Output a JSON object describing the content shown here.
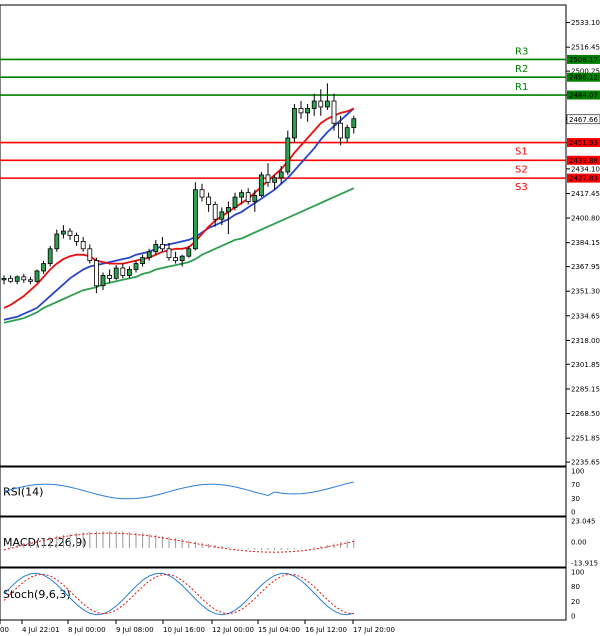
{
  "chart_data": {
    "type": "candlestick",
    "price_axis": {
      "ticks": [
        "2533.10",
        "2516.45",
        "2500.25",
        "2484.07",
        "2467.66",
        "2451.93",
        "2434.10",
        "2417.45",
        "2400.80",
        "2384.15",
        "2367.95",
        "2351.30",
        "2334.65",
        "2318.00",
        "2301.85",
        "2285.15",
        "2268.50",
        "2251.85",
        "2235.65"
      ],
      "ylim": [
        2233,
        2545
      ]
    },
    "time_axis": {
      "ticks": [
        "00",
        "4 Jul 22:01",
        "8 Jul 00:00",
        "9 Jul 08:00",
        "10 Jul 16:00",
        "12 Jul 00:00",
        "15 Jul 04:00",
        "16 Jul 12:00",
        "17 Jul 20:00"
      ]
    },
    "levels": [
      {
        "name": "R3",
        "value": 2508.17,
        "label": "2508.17",
        "color": "#008000"
      },
      {
        "name": "R2",
        "value": 2496.12,
        "label": "2496.12",
        "color": "#008000"
      },
      {
        "name": "R1",
        "value": 2484.07,
        "label": "2484.07",
        "color": "#008000"
      },
      {
        "name": "S1",
        "value": 2451.93,
        "label": "2451.93",
        "color": "#ff0000"
      },
      {
        "name": "S2",
        "value": 2439.88,
        "label": "2439.88",
        "color": "#ff0000"
      },
      {
        "name": "S3",
        "value": 2427.83,
        "label": "2427.83",
        "color": "#ff0000"
      }
    ],
    "current_price": {
      "value": 2467.66,
      "label": "2467.66"
    },
    "candles": [
      [
        2359,
        2362,
        2356,
        2360
      ],
      [
        2360,
        2362,
        2357,
        2358
      ],
      [
        2358,
        2362,
        2356,
        2361
      ],
      [
        2361,
        2363,
        2357,
        2359
      ],
      [
        2359,
        2361,
        2356,
        2358
      ],
      [
        2358,
        2366,
        2357,
        2365
      ],
      [
        2365,
        2372,
        2363,
        2370
      ],
      [
        2370,
        2382,
        2368,
        2380
      ],
      [
        2380,
        2393,
        2378,
        2390
      ],
      [
        2390,
        2396,
        2387,
        2392
      ],
      [
        2392,
        2394,
        2386,
        2389
      ],
      [
        2389,
        2391,
        2382,
        2385
      ],
      [
        2385,
        2388,
        2378,
        2380
      ],
      [
        2380,
        2383,
        2370,
        2372
      ],
      [
        2372,
        2374,
        2350,
        2355
      ],
      [
        2355,
        2364,
        2352,
        2362
      ],
      [
        2362,
        2366,
        2357,
        2360
      ],
      [
        2360,
        2369,
        2359,
        2367
      ],
      [
        2367,
        2370,
        2360,
        2362
      ],
      [
        2362,
        2368,
        2360,
        2366
      ],
      [
        2366,
        2372,
        2364,
        2370
      ],
      [
        2370,
        2376,
        2368,
        2374
      ],
      [
        2374,
        2380,
        2372,
        2378
      ],
      [
        2378,
        2386,
        2376,
        2383
      ],
      [
        2383,
        2388,
        2378,
        2380
      ],
      [
        2380,
        2384,
        2372,
        2374
      ],
      [
        2374,
        2378,
        2370,
        2372
      ],
      [
        2372,
        2376,
        2368,
        2375
      ],
      [
        2375,
        2382,
        2374,
        2380
      ],
      [
        2380,
        2425,
        2379,
        2420
      ],
      [
        2420,
        2424,
        2412,
        2415
      ],
      [
        2415,
        2418,
        2405,
        2410
      ],
      [
        2410,
        2412,
        2395,
        2400
      ],
      [
        2400,
        2408,
        2396,
        2405
      ],
      [
        2405,
        2412,
        2390,
        2408
      ],
      [
        2408,
        2418,
        2406,
        2415
      ],
      [
        2415,
        2420,
        2410,
        2418
      ],
      [
        2418,
        2421,
        2410,
        2412
      ],
      [
        2412,
        2420,
        2405,
        2416
      ],
      [
        2416,
        2432,
        2415,
        2430
      ],
      [
        2430,
        2438,
        2422,
        2425
      ],
      [
        2425,
        2430,
        2420,
        2428
      ],
      [
        2428,
        2436,
        2424,
        2432
      ],
      [
        2432,
        2460,
        2430,
        2455
      ],
      [
        2455,
        2478,
        2452,
        2475
      ],
      [
        2475,
        2480,
        2468,
        2472
      ],
      [
        2472,
        2478,
        2466,
        2475
      ],
      [
        2475,
        2485,
        2470,
        2480
      ],
      [
        2480,
        2488,
        2470,
        2476
      ],
      [
        2476,
        2492,
        2474,
        2480
      ],
      [
        2480,
        2485,
        2460,
        2465
      ],
      [
        2465,
        2470,
        2450,
        2455
      ],
      [
        2455,
        2464,
        2452,
        2462
      ],
      [
        2462,
        2470,
        2458,
        2468
      ]
    ],
    "ma_slow": [
      2330,
      2331,
      2332,
      2333,
      2335,
      2337,
      2340,
      2342,
      2344,
      2346,
      2348,
      2350,
      2352,
      2353,
      2354,
      2356,
      2357,
      2358,
      2359,
      2360,
      2361,
      2363,
      2364,
      2366,
      2367,
      2368,
      2369,
      2370,
      2371,
      2373,
      2376,
      2378,
      2380,
      2382,
      2384,
      2386,
      2387,
      2389,
      2391,
      2393,
      2395,
      2397,
      2399,
      2401,
      2403,
      2405,
      2407,
      2409,
      2411,
      2413,
      2415,
      2417,
      2419,
      2421
    ],
    "ma_mid": [
      2332,
      2333,
      2334,
      2336,
      2338,
      2340,
      2344,
      2348,
      2352,
      2356,
      2360,
      2363,
      2366,
      2368,
      2369,
      2370,
      2371,
      2372,
      2373,
      2374,
      2376,
      2377,
      2378,
      2380,
      2382,
      2383,
      2384,
      2385,
      2386,
      2388,
      2391,
      2394,
      2396,
      2398,
      2400,
      2403,
      2405,
      2408,
      2411,
      2414,
      2417,
      2420,
      2424,
      2428,
      2433,
      2438,
      2443,
      2448,
      2454,
      2459,
      2463,
      2467,
      2471,
      2475
    ],
    "ma_fast": [
      2340,
      2342,
      2345,
      2348,
      2352,
      2356,
      2361,
      2366,
      2370,
      2373,
      2375,
      2376,
      2376,
      2375,
      2372,
      2371,
      2370,
      2370,
      2370,
      2371,
      2372,
      2373,
      2374,
      2376,
      2378,
      2379,
      2380,
      2380,
      2381,
      2385,
      2390,
      2395,
      2399,
      2402,
      2405,
      2408,
      2411,
      2414,
      2418,
      2422,
      2426,
      2430,
      2434,
      2439,
      2445,
      2450,
      2455,
      2460,
      2465,
      2468,
      2470,
      2472,
      2473,
      2475
    ],
    "indicators": [
      {
        "name": "RSI(14)",
        "levels": [
          "100",
          "70",
          "30",
          "0"
        ]
      },
      {
        "name": "MACD(12,26,9)",
        "levels": [
          "23.045",
          "0.00",
          "-13.915"
        ]
      },
      {
        "name": "Stoch(9,6,3)",
        "levels": [
          "100",
          "80",
          "20",
          "0"
        ]
      }
    ]
  }
}
